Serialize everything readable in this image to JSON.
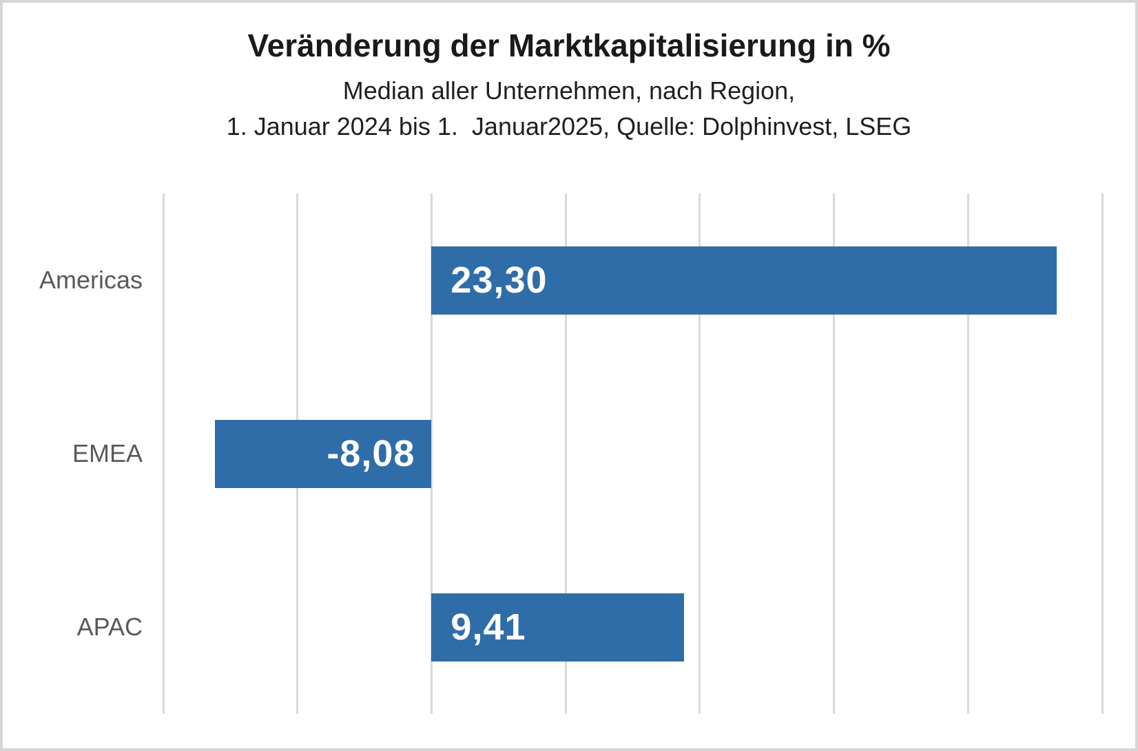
{
  "header": {
    "title": "Veränderung der Marktkapitalisierung in %",
    "subtitle_line1": "Median aller Unternehmen, nach Region,",
    "subtitle_line2": "1. Januar 2024 bis 1.  Januar2025, Quelle: Dolphinvest, LSEG"
  },
  "chart_data": {
    "type": "bar",
    "orientation": "horizontal",
    "title": "Veränderung der Marktkapitalisierung in %",
    "subtitle": [
      "Median aller Unternehmen, nach Region,",
      "1. Januar 2024 bis 1.  Januar2025, Quelle: Dolphinvest, LSEG"
    ],
    "categories": [
      "Americas",
      "EMEA",
      "APAC"
    ],
    "values": [
      23.3,
      -8.08,
      9.41
    ],
    "value_labels": [
      "23,30",
      "-8,08",
      "9,41"
    ],
    "value_label_position": "inside-base",
    "xlim": [
      -10,
      25
    ],
    "x_tick_step": 5,
    "x_tick_labels_visible": false,
    "grid": "vertical",
    "legend": "none",
    "colors": {
      "bar": "#2F6DA9",
      "value_label": "#FFFFFF",
      "category_label": "#595959",
      "gridline": "#D9D9D9",
      "title": "#1A1A1A",
      "frame_border": "#D6D6D6",
      "background": "#FFFFFF"
    }
  }
}
